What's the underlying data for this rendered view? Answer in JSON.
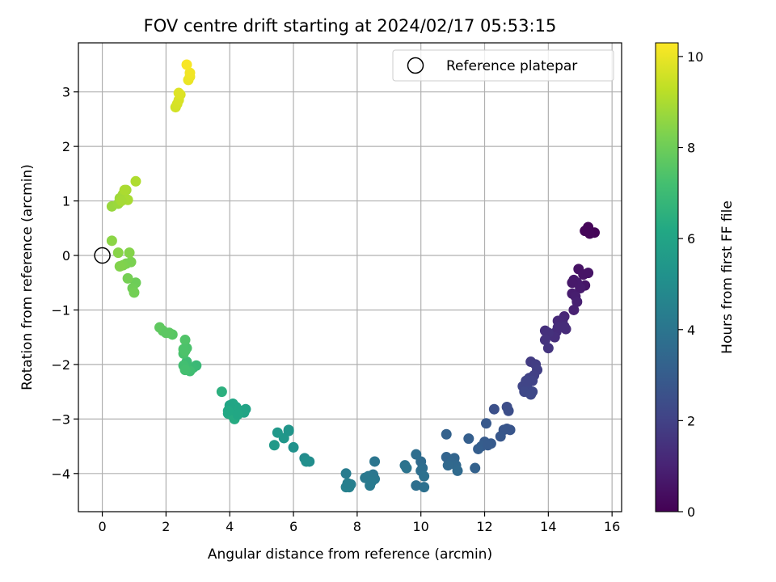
{
  "chart_data": {
    "type": "scatter",
    "title": "FOV centre drift starting at 2024/02/17 05:53:15",
    "xlabel": "Angular distance from reference (arcmin)",
    "ylabel": "Rotation from reference (arcmin)",
    "xlim": [
      -0.75,
      16.3
    ],
    "ylim": [
      -4.7,
      3.9
    ],
    "xticks": [
      0,
      2,
      4,
      6,
      8,
      10,
      12,
      14,
      16
    ],
    "yticks": [
      -4,
      -3,
      -2,
      -1,
      0,
      1,
      2,
      3
    ],
    "grid": true,
    "legend": {
      "position": "upper right",
      "entries": [
        "Reference platepar"
      ]
    },
    "reference_point": {
      "label": "Reference platepar",
      "x": 0,
      "y": 0
    },
    "colorbar": {
      "label": "Hours from first FF file",
      "range": [
        0,
        10.3
      ],
      "ticks": [
        0,
        2,
        4,
        6,
        8,
        10
      ],
      "colormap": "viridis"
    },
    "series": [
      {
        "x": [
          15.25,
          15.45,
          15.3,
          15.15
        ],
        "y": [
          0.52,
          0.42,
          0.4,
          0.45
        ],
        "t": [
          0.15,
          0.1,
          0.15,
          0.15
        ]
      },
      {
        "x": [
          14.95,
          15.1,
          15.25,
          15.15,
          14.8,
          14.9,
          15.0,
          14.75,
          14.85,
          14.9,
          14.8,
          14.75
        ],
        "y": [
          -0.25,
          -0.35,
          -0.32,
          -0.55,
          -0.45,
          -0.5,
          -0.6,
          -0.7,
          -0.75,
          -0.85,
          -1.0,
          -0.5
        ],
        "t": [
          0.5,
          0.55,
          0.55,
          0.6,
          0.7,
          0.75,
          0.75,
          0.8,
          0.85,
          0.9,
          0.95,
          0.7
        ]
      },
      {
        "x": [
          14.5,
          14.45,
          14.4,
          14.3,
          14.55,
          14.25,
          14.2,
          13.9,
          14.0,
          13.9,
          14.0,
          14.3,
          14.5
        ],
        "y": [
          -1.12,
          -1.18,
          -1.25,
          -1.2,
          -1.35,
          -1.4,
          -1.5,
          -1.38,
          -1.42,
          -1.55,
          -1.7,
          -1.32,
          -1.3
        ],
        "t": [
          1.1,
          1.15,
          1.2,
          1.2,
          1.25,
          1.3,
          1.35,
          1.4,
          1.45,
          1.5,
          1.55,
          1.3,
          1.28
        ]
      },
      {
        "x": [
          13.45,
          13.6,
          13.65,
          13.55,
          13.4,
          13.5,
          13.3,
          13.2,
          13.35,
          13.5,
          13.25,
          13.45,
          13.3
        ],
        "y": [
          -1.95,
          -2.0,
          -2.1,
          -2.2,
          -2.25,
          -2.3,
          -2.35,
          -2.4,
          -2.45,
          -2.5,
          -2.5,
          -2.55,
          -2.3
        ],
        "t": [
          1.8,
          1.85,
          1.9,
          1.95,
          2.0,
          2.05,
          2.1,
          2.12,
          2.15,
          2.2,
          2.22,
          2.25,
          2.1
        ]
      },
      {
        "x": [
          12.7,
          12.75,
          12.3,
          12.7,
          12.8,
          12.6,
          12.5,
          12.05,
          12.2,
          12.0,
          11.9,
          12.1,
          11.8,
          11.5,
          11.7
        ],
        "y": [
          -2.78,
          -2.85,
          -2.82,
          -3.18,
          -3.2,
          -3.2,
          -3.32,
          -3.08,
          -3.45,
          -3.42,
          -3.5,
          -3.48,
          -3.55,
          -3.36,
          -3.9
        ],
        "t": [
          2.4,
          2.45,
          2.5,
          2.7,
          2.72,
          2.75,
          2.8,
          2.85,
          2.9,
          2.95,
          3.0,
          2.92,
          3.05,
          3.1,
          3.2
        ]
      },
      {
        "x": [
          10.8,
          10.8,
          11.05,
          10.95,
          11.1,
          10.85,
          11.15,
          10.0,
          10.05,
          9.85,
          9.85,
          10.1,
          10.0,
          10.1,
          9.5,
          9.55
        ],
        "y": [
          -3.28,
          -3.7,
          -3.72,
          -3.8,
          -3.85,
          -3.85,
          -3.95,
          -3.78,
          -3.9,
          -3.65,
          -4.22,
          -4.25,
          -3.95,
          -4.05,
          -3.85,
          -3.9
        ],
        "t": [
          3.2,
          3.3,
          3.35,
          3.4,
          3.45,
          3.5,
          3.55,
          3.6,
          3.65,
          3.7,
          3.75,
          3.8,
          3.75,
          3.85,
          3.9,
          3.95
        ]
      },
      {
        "x": [
          8.55,
          8.5,
          8.55,
          8.35,
          8.25,
          8.45,
          8.4,
          7.65,
          7.8,
          7.7,
          7.75,
          7.65,
          7.7
        ],
        "y": [
          -3.78,
          -4.02,
          -4.1,
          -4.05,
          -4.08,
          -4.15,
          -4.22,
          -4.0,
          -4.2,
          -4.22,
          -4.25,
          -4.25,
          -4.18
        ],
        "t": [
          4.0,
          4.05,
          4.1,
          4.12,
          4.15,
          4.2,
          4.22,
          4.3,
          4.35,
          4.4,
          4.45,
          4.5,
          4.42
        ]
      },
      {
        "x": [
          6.35,
          6.5,
          6.4,
          6.0,
          5.85,
          5.7,
          5.5,
          5.4,
          5.85
        ],
        "y": [
          -3.72,
          -3.78,
          -3.78,
          -3.52,
          -3.22,
          -3.35,
          -3.25,
          -3.48,
          -3.2
        ],
        "t": [
          4.9,
          5.0,
          5.05,
          5.2,
          5.3,
          5.4,
          5.45,
          5.5,
          5.35
        ]
      },
      {
        "x": [
          4.5,
          4.45,
          4.4,
          4.2,
          4.1,
          4.05,
          3.95,
          4.1,
          4.15,
          4.0,
          3.75,
          3.95,
          4.25
        ],
        "y": [
          -2.82,
          -2.88,
          -2.85,
          -2.78,
          -2.72,
          -2.82,
          -2.9,
          -2.95,
          -3.0,
          -2.75,
          -2.5,
          -2.85,
          -2.92
        ],
        "t": [
          5.9,
          5.95,
          6.0,
          6.05,
          6.1,
          6.15,
          6.2,
          6.25,
          6.3,
          6.05,
          6.5,
          6.18,
          6.12
        ]
      },
      {
        "x": [
          2.95,
          2.85,
          2.7,
          2.65,
          2.75,
          2.55,
          2.6,
          2.55,
          2.65,
          2.6,
          2.6,
          2.55,
          2.2,
          2.1,
          1.9,
          1.8,
          2.0
        ],
        "y": [
          -2.02,
          -2.06,
          -2.08,
          -1.95,
          -2.12,
          -2.02,
          -2.1,
          -1.8,
          -1.7,
          -1.75,
          -1.55,
          -1.72,
          -1.45,
          -1.42,
          -1.38,
          -1.32,
          -1.42
        ],
        "t": [
          6.9,
          6.95,
          7.0,
          7.05,
          7.1,
          7.15,
          7.2,
          7.3,
          7.35,
          7.4,
          7.45,
          7.38,
          7.6,
          7.65,
          7.7,
          7.75,
          7.68
        ]
      },
      {
        "x": [
          1.05,
          0.95,
          1.0,
          0.8,
          0.75,
          0.9,
          0.65,
          0.55,
          0.85,
          0.5,
          0.3
        ],
        "y": [
          -0.5,
          -0.6,
          -0.68,
          -0.42,
          -0.15,
          -0.12,
          -0.18,
          -0.2,
          0.05,
          0.05,
          0.27
        ],
        "t": [
          8.0,
          8.05,
          8.1,
          8.15,
          8.2,
          8.25,
          8.3,
          8.35,
          8.4,
          8.45,
          8.5
        ]
      },
      {
        "x": [
          0.3,
          0.5,
          0.55,
          0.65,
          0.75,
          0.8,
          0.6,
          0.7,
          1.05
        ],
        "y": [
          0.9,
          0.95,
          1.05,
          1.12,
          1.2,
          1.02,
          1.0,
          1.2,
          1.36
        ],
        "t": [
          8.7,
          8.75,
          8.8,
          8.85,
          8.9,
          8.95,
          8.9,
          9.0,
          9.05
        ]
      },
      {
        "x": [
          2.3,
          2.35,
          2.4,
          2.45,
          2.4,
          2.7,
          2.75,
          2.75,
          2.65
        ],
        "y": [
          2.72,
          2.78,
          2.85,
          2.95,
          2.98,
          3.22,
          3.28,
          3.35,
          3.5
        ],
        "t": [
          9.6,
          9.65,
          9.7,
          9.75,
          9.8,
          10.0,
          10.05,
          10.1,
          10.2
        ]
      }
    ]
  }
}
